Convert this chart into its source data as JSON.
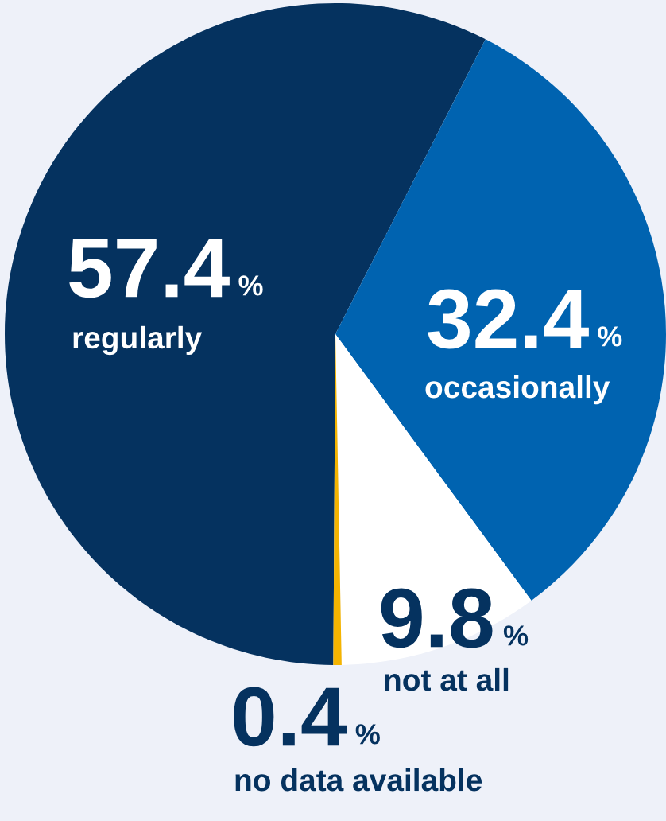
{
  "chart_data": {
    "type": "pie",
    "categories": [
      "regularly",
      "occasionally",
      "not at all",
      "no data available"
    ],
    "values": [
      57.4,
      32.4,
      9.8,
      0.4
    ],
    "colors": [
      "#05325f",
      "#0063b0",
      "#ffffff",
      "#f5b400"
    ],
    "value_labels": [
      "57.4 %",
      "32.4 %",
      "9.8 %",
      "0.4 %"
    ],
    "legend": false
  }
}
